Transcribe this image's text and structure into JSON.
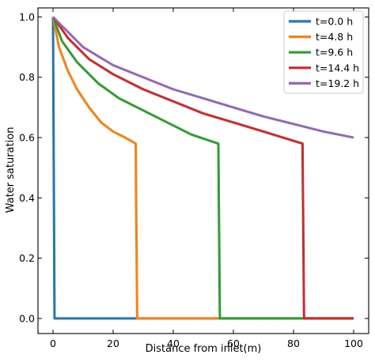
{
  "chart_data": {
    "type": "line",
    "title": "",
    "xlabel": "Distance from inlet(m)",
    "ylabel": "Water saturation",
    "xlim": [
      -5,
      105
    ],
    "ylim": [
      -0.05,
      1.03
    ],
    "xticks": [
      0,
      20,
      40,
      60,
      80,
      100
    ],
    "yticks": [
      0.0,
      0.2,
      0.4,
      0.6,
      0.8,
      1.0
    ],
    "xtick_labels": [
      "0",
      "20",
      "40",
      "60",
      "80",
      "100"
    ],
    "ytick_labels": [
      "0.0",
      "0.2",
      "0.4",
      "0.6",
      "0.8",
      "1.0"
    ],
    "grid": false,
    "legend_position": "top-right",
    "series": [
      {
        "name": "t=0.0 h",
        "color": "#1f77b4",
        "points": [
          [
            0,
            1.0
          ],
          [
            0.5,
            0.0
          ],
          [
            100,
            0.0
          ]
        ]
      },
      {
        "name": "t=4.8 h",
        "color": "#ff7f0e",
        "points": [
          [
            0,
            1.0
          ],
          [
            2,
            0.9
          ],
          [
            5,
            0.82
          ],
          [
            8,
            0.76
          ],
          [
            12,
            0.7
          ],
          [
            16,
            0.65
          ],
          [
            20,
            0.62
          ],
          [
            24,
            0.6
          ],
          [
            27.5,
            0.58
          ],
          [
            28,
            0.0
          ],
          [
            100,
            0.0
          ]
        ]
      },
      {
        "name": "t=9.6 h",
        "color": "#2ca02c",
        "points": [
          [
            0,
            1.0
          ],
          [
            3,
            0.92
          ],
          [
            8,
            0.85
          ],
          [
            15,
            0.78
          ],
          [
            22,
            0.73
          ],
          [
            30,
            0.69
          ],
          [
            38,
            0.65
          ],
          [
            46,
            0.61
          ],
          [
            55,
            0.58
          ],
          [
            55.5,
            0.0
          ],
          [
            100,
            0.0
          ]
        ]
      },
      {
        "name": "t=14.4 h",
        "color": "#d62728",
        "points": [
          [
            0,
            1.0
          ],
          [
            5,
            0.93
          ],
          [
            12,
            0.86
          ],
          [
            20,
            0.81
          ],
          [
            30,
            0.76
          ],
          [
            40,
            0.72
          ],
          [
            50,
            0.68
          ],
          [
            60,
            0.65
          ],
          [
            70,
            0.62
          ],
          [
            83,
            0.58
          ],
          [
            83.5,
            0.0
          ],
          [
            100,
            0.0
          ]
        ]
      },
      {
        "name": "t=19.2 h",
        "color": "#9467bd",
        "points": [
          [
            0,
            1.0
          ],
          [
            5,
            0.95
          ],
          [
            10,
            0.9
          ],
          [
            20,
            0.84
          ],
          [
            30,
            0.8
          ],
          [
            40,
            0.76
          ],
          [
            50,
            0.73
          ],
          [
            60,
            0.7
          ],
          [
            70,
            0.67
          ],
          [
            80,
            0.645
          ],
          [
            90,
            0.62
          ],
          [
            100,
            0.6
          ]
        ]
      }
    ]
  }
}
